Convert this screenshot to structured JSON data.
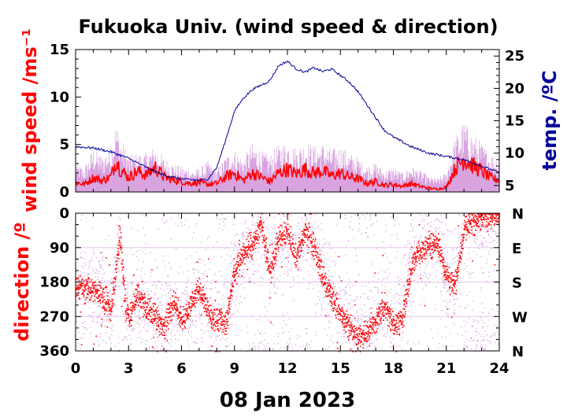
{
  "chart_data": [
    {
      "type": "line",
      "title": "Fukuoka Univ. (wind speed & direction)",
      "ylabel": "wind speed /ms⁻¹",
      "y2label": "temp. /ºC",
      "ylim": [
        0,
        15
      ],
      "y2lim": [
        4,
        26
      ],
      "xlim": [
        0,
        24
      ],
      "y_ticks": [
        "0",
        "5",
        "10",
        "15"
      ],
      "y2_ticks": [
        "5",
        "10",
        "15",
        "20",
        "25"
      ],
      "colors": {
        "speed_mean": "#ff0000",
        "speed_gust": "#d9a3e0",
        "temperature": "#000099"
      },
      "series": [
        {
          "key": "speed_mean",
          "x": [
            0,
            0.5,
            1,
            1.5,
            2,
            2.3,
            2.5,
            3,
            3.5,
            4,
            4.5,
            5,
            5.5,
            6,
            6.5,
            7,
            7.5,
            8,
            8.5,
            9,
            9.5,
            10,
            10.5,
            11,
            11.5,
            12,
            12.5,
            13,
            13.5,
            14,
            14.5,
            15,
            15.5,
            16,
            16.5,
            17,
            17.5,
            18,
            18.5,
            19,
            19.5,
            20,
            20.5,
            21,
            21.5,
            22,
            22.5,
            23,
            23.5,
            24
          ],
          "y": [
            1.0,
            0.8,
            1.5,
            1.2,
            1.6,
            3.5,
            2.5,
            1.5,
            2.2,
            1.8,
            2.6,
            1.6,
            1.3,
            1.1,
            0.9,
            1.0,
            0.8,
            0.9,
            1.6,
            2.0,
            1.2,
            2.0,
            1.6,
            1.1,
            2.0,
            2.4,
            1.9,
            2.4,
            2.0,
            2.2,
            1.7,
            2.0,
            1.6,
            1.4,
            0.9,
            1.1,
            0.7,
            0.8,
            0.6,
            0.9,
            0.6,
            0.4,
            0.3,
            0.5,
            2.5,
            3.5,
            2.8,
            2.2,
            1.5,
            1.2
          ]
        },
        {
          "key": "speed_gust",
          "x": [
            0,
            0.5,
            1,
            1.5,
            2,
            2.3,
            2.5,
            3,
            3.5,
            4,
            4.5,
            5,
            5.5,
            6,
            6.5,
            7,
            7.5,
            8,
            8.5,
            9,
            9.5,
            10,
            10.5,
            11,
            11.5,
            12,
            12.5,
            13,
            13.5,
            14,
            14.5,
            15,
            15.5,
            16,
            16.5,
            17,
            17.5,
            18,
            18.5,
            19,
            19.5,
            20,
            20.5,
            21,
            21.5,
            22,
            22.5,
            23,
            23.5,
            24
          ],
          "y": [
            2.4,
            2.0,
            3.6,
            3.0,
            3.8,
            5.8,
            4.6,
            3.0,
            3.2,
            3.2,
            3.8,
            2.8,
            2.4,
            2.1,
            1.9,
            1.9,
            2.5,
            1.8,
            3.0,
            3.5,
            2.8,
            4.0,
            3.4,
            3.0,
            3.8,
            4.2,
            3.6,
            4.2,
            3.8,
            4.0,
            3.5,
            3.8,
            3.2,
            2.8,
            2.2,
            2.4,
            1.8,
            2.0,
            1.6,
            2.2,
            1.8,
            1.3,
            1.1,
            1.6,
            4.5,
            5.8,
            4.8,
            4.0,
            3.2,
            2.8
          ]
        },
        {
          "key": "temperature",
          "axis": "right",
          "x": [
            0,
            1,
            2,
            3,
            4,
            5,
            6,
            7,
            7.5,
            8,
            8.5,
            9,
            9.5,
            10,
            10.5,
            11,
            11.5,
            12,
            12.5,
            13,
            13.5,
            14,
            14.5,
            15,
            15.5,
            16,
            16.5,
            17,
            17.5,
            18,
            19,
            20,
            21,
            22,
            23,
            24
          ],
          "y": [
            11.0,
            10.8,
            10.2,
            9.2,
            7.8,
            6.6,
            6.0,
            5.8,
            6.0,
            7.8,
            12.0,
            16.5,
            18.5,
            19.8,
            20.5,
            21.2,
            23.5,
            24.2,
            23.0,
            22.5,
            23.2,
            22.6,
            23.0,
            22.0,
            21.0,
            19.5,
            17.5,
            15.5,
            13.5,
            12.5,
            11.0,
            10.0,
            9.5,
            9.0,
            8.0,
            7.0
          ]
        }
      ]
    },
    {
      "type": "scatter",
      "ylabel": "direction /º",
      "xlabel": "08 Jan 2023",
      "ylim": [
        0,
        360
      ],
      "xlim": [
        0,
        24
      ],
      "y_ticks": [
        "0",
        "90",
        "180",
        "270",
        "360"
      ],
      "y2_ticks": [
        "N",
        "E",
        "S",
        "W",
        "N"
      ],
      "x_ticks": [
        "0",
        "3",
        "6",
        "9",
        "12",
        "15",
        "18",
        "21",
        "24"
      ],
      "colors": {
        "mean": "#ff0000",
        "samples": "#d9a3e0"
      },
      "series": [
        {
          "key": "direction_mean",
          "x": [
            0,
            0.5,
            1,
            1.5,
            2,
            2.5,
            2.8,
            3,
            3.5,
            4,
            4.5,
            5,
            5.5,
            6,
            6.5,
            7,
            7.5,
            8,
            8.5,
            9,
            9.5,
            10,
            10.5,
            11,
            11.5,
            12,
            12.5,
            13,
            13.5,
            14,
            14.5,
            15,
            15.5,
            16,
            16.5,
            17,
            17.5,
            18,
            18.5,
            19,
            19.5,
            20,
            20.5,
            21,
            21.5,
            22,
            22.5,
            23,
            23.5,
            24
          ],
          "y": [
            190,
            200,
            195,
            215,
            250,
            60,
            240,
            270,
            210,
            250,
            270,
            300,
            230,
            280,
            240,
            200,
            260,
            275,
            285,
            150,
            100,
            80,
            30,
            160,
            60,
            50,
            120,
            40,
            90,
            170,
            220,
            260,
            300,
            320,
            310,
            280,
            240,
            300,
            270,
            130,
            100,
            90,
            80,
            170,
            180,
            40,
            20,
            10,
            5,
            0
          ]
        }
      ]
    }
  ]
}
